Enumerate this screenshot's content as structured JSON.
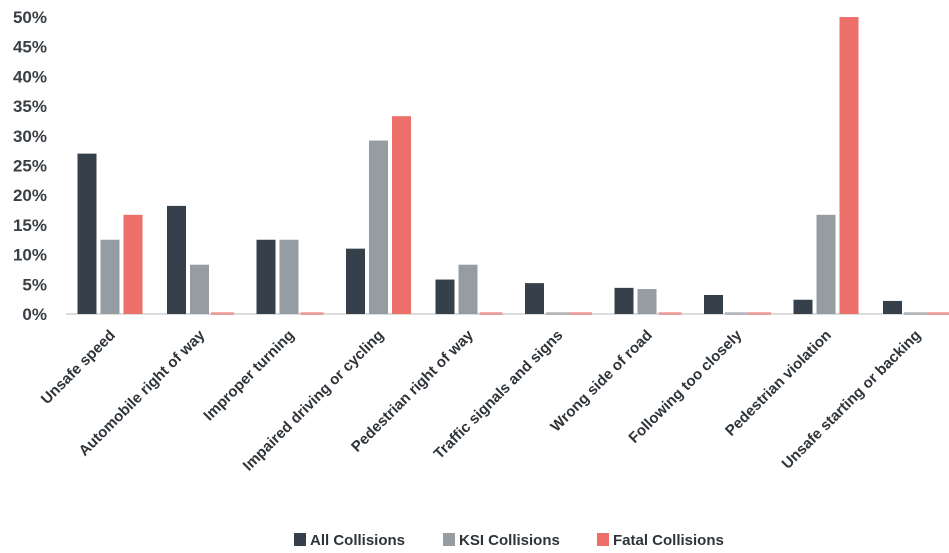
{
  "chart_data": {
    "type": "bar",
    "categories": [
      "Unsafe speed",
      "Automobile right of way",
      "Improper turning",
      "Impaired driving or cycling",
      "Pedestrian right of way",
      "Traffic signals and signs",
      "Wrong side of road",
      "Following too closely",
      "Pedestrian violation",
      "Unsafe starting or backing"
    ],
    "series": [
      {
        "name": "All Collisions",
        "color": "#36404a",
        "values": [
          27,
          18.2,
          12.5,
          11,
          5.8,
          5.2,
          4.4,
          3.2,
          2.4,
          2.2
        ]
      },
      {
        "name": "KSI Collisions",
        "color": "#959ca2",
        "values": [
          12.5,
          8.3,
          12.5,
          29.2,
          8.3,
          0,
          4.2,
          0,
          16.7,
          0
        ]
      },
      {
        "name": "Fatal Collisions",
        "color": "#ec6f69",
        "values": [
          16.7,
          0,
          0,
          33.3,
          0,
          0,
          0,
          0,
          50,
          0
        ]
      }
    ],
    "yticks": [
      "0%",
      "5%",
      "10%",
      "15%",
      "20%",
      "25%",
      "30%",
      "35%",
      "40%",
      "45%",
      "50%"
    ],
    "ylim": [
      0,
      50
    ],
    "legend_position": "bottom-center",
    "grid": false
  }
}
